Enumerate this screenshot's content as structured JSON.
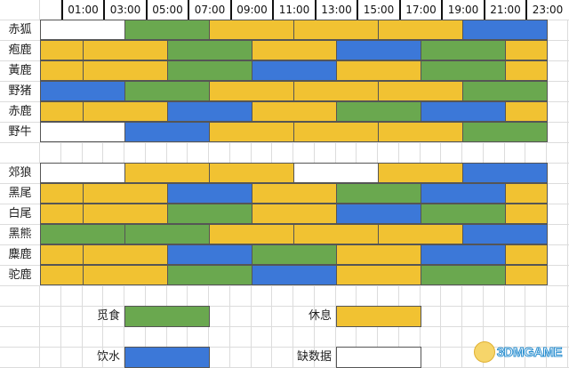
{
  "colors": {
    "forage": "#6aa84f",
    "rest": "#f1c232",
    "water": "#3c78d8",
    "nodata": "#ffffff"
  },
  "header": {
    "times": [
      "01:00",
      "03:00",
      "05:00",
      "07:00",
      "09:00",
      "11:00",
      "13:00",
      "15:00",
      "17:00",
      "19:00",
      "21:00",
      "23:00"
    ]
  },
  "groups": [
    {
      "animals": [
        {
          "name": "赤狐",
          "segments": [
            [
              "nodata",
              4
            ],
            [
              "forage",
              4
            ],
            [
              "rest",
              4
            ],
            [
              "rest",
              4
            ],
            [
              "rest",
              4
            ],
            [
              "water",
              4
            ]
          ]
        },
        {
          "name": "疱鹿",
          "segments": [
            [
              "rest",
              2
            ],
            [
              "rest",
              4
            ],
            [
              "forage",
              4
            ],
            [
              "rest",
              4
            ],
            [
              "water",
              4
            ],
            [
              "forage",
              4
            ],
            [
              "rest",
              2
            ]
          ]
        },
        {
          "name": "黃鹿",
          "segments": [
            [
              "rest",
              2
            ],
            [
              "rest",
              4
            ],
            [
              "forage",
              4
            ],
            [
              "water",
              4
            ],
            [
              "rest",
              4
            ],
            [
              "forage",
              4
            ],
            [
              "rest",
              2
            ]
          ]
        },
        {
          "name": "野猪",
          "segments": [
            [
              "water",
              4
            ],
            [
              "forage",
              4
            ],
            [
              "rest",
              4
            ],
            [
              "rest",
              4
            ],
            [
              "rest",
              4
            ],
            [
              "forage",
              4
            ]
          ]
        },
        {
          "name": "赤鹿",
          "segments": [
            [
              "rest",
              2
            ],
            [
              "rest",
              4
            ],
            [
              "water",
              4
            ],
            [
              "rest",
              4
            ],
            [
              "forage",
              4
            ],
            [
              "water",
              4
            ],
            [
              "rest",
              2
            ]
          ]
        },
        {
          "name": "野牛",
          "segments": [
            [
              "nodata",
              4
            ],
            [
              "water",
              4
            ],
            [
              "rest",
              4
            ],
            [
              "rest",
              4
            ],
            [
              "rest",
              4
            ],
            [
              "forage",
              4
            ]
          ]
        }
      ]
    },
    {
      "animals": [
        {
          "name": "郊狼",
          "segments": [
            [
              "nodata",
              4
            ],
            [
              "rest",
              4
            ],
            [
              "rest",
              4
            ],
            [
              "nodata",
              4
            ],
            [
              "rest",
              4
            ],
            [
              "water",
              4
            ]
          ]
        },
        {
          "name": "黑尾",
          "segments": [
            [
              "rest",
              2
            ],
            [
              "rest",
              4
            ],
            [
              "water",
              4
            ],
            [
              "rest",
              4
            ],
            [
              "forage",
              4
            ],
            [
              "water",
              4
            ],
            [
              "rest",
              2
            ]
          ]
        },
        {
          "name": "白尾",
          "segments": [
            [
              "rest",
              2
            ],
            [
              "rest",
              4
            ],
            [
              "forage",
              4
            ],
            [
              "rest",
              4
            ],
            [
              "water",
              4
            ],
            [
              "forage",
              4
            ],
            [
              "rest",
              2
            ]
          ]
        },
        {
          "name": "黑熊",
          "segments": [
            [
              "forage",
              4
            ],
            [
              "forage",
              4
            ],
            [
              "rest",
              4
            ],
            [
              "rest",
              4
            ],
            [
              "rest",
              4
            ],
            [
              "water",
              4
            ]
          ]
        },
        {
          "name": "麋鹿",
          "segments": [
            [
              "rest",
              2
            ],
            [
              "rest",
              4
            ],
            [
              "water",
              4
            ],
            [
              "forage",
              4
            ],
            [
              "rest",
              4
            ],
            [
              "water",
              4
            ],
            [
              "rest",
              2
            ]
          ]
        },
        {
          "name": "驼鹿",
          "segments": [
            [
              "rest",
              2
            ],
            [
              "rest",
              4
            ],
            [
              "forage",
              4
            ],
            [
              "water",
              4
            ],
            [
              "rest",
              4
            ],
            [
              "forage",
              4
            ],
            [
              "rest",
              2
            ]
          ]
        }
      ]
    }
  ],
  "legend": [
    {
      "key": "forage",
      "label": "觅食"
    },
    {
      "key": "rest",
      "label": "休息"
    },
    {
      "key": "water",
      "label": "饮水"
    },
    {
      "key": "nodata",
      "label": "缺数据"
    }
  ],
  "watermark": "3DMGAME"
}
